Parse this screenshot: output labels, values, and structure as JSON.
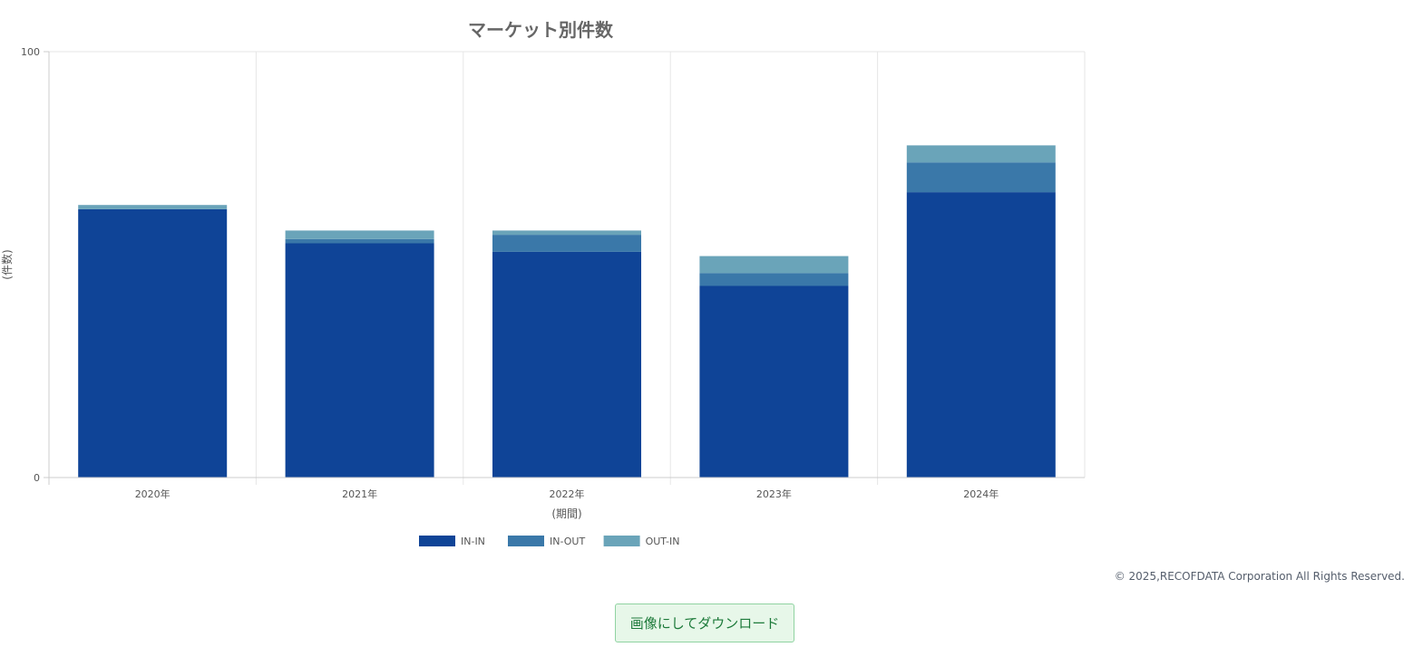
{
  "chart_data": {
    "type": "bar",
    "stacked": true,
    "title": "マーケット別件数",
    "xlabel": "(期間)",
    "ylabel": "(件数)",
    "ylim": [
      0,
      100
    ],
    "y_ticks": [
      "0",
      "100"
    ],
    "grid": true,
    "legend_position": "bottom",
    "categories": [
      "2020年",
      "2021年",
      "2022年",
      "2023年",
      "2024年"
    ],
    "series": [
      {
        "name": "IN-IN",
        "color": "#0f4497",
        "values": [
          63,
          55,
          53,
          45,
          67
        ]
      },
      {
        "name": "IN-OUT",
        "color": "#3a78a9",
        "values": [
          0,
          1,
          4,
          3,
          7
        ]
      },
      {
        "name": "OUT-IN",
        "color": "#6aa4b9",
        "values": [
          1,
          2,
          1,
          4,
          4
        ]
      }
    ]
  },
  "footer": {
    "copyright": "© 2025,RECOFDATA Corporation All Rights Reserved."
  },
  "download": {
    "label": "画像にしてダウンロード"
  }
}
